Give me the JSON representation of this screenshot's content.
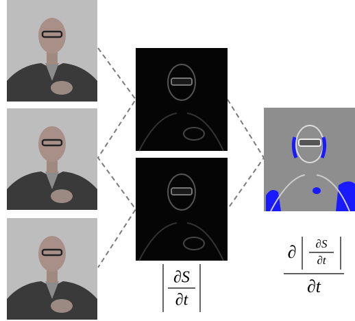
{
  "formulas": [
    {
      "numerator": "∂S",
      "denominator": "∂t"
    },
    {
      "outer_numerator": "∂",
      "inner_numerator": "∂S",
      "inner_denominator": "∂t",
      "denominator": "∂t"
    }
  ]
}
